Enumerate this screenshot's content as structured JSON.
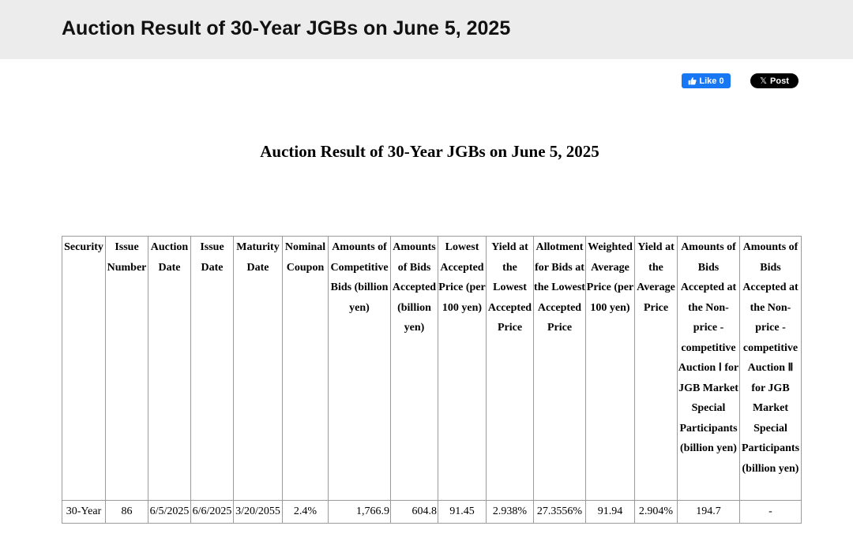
{
  "header": {
    "title": "Auction Result of 30-Year JGBs on June 5, 2025"
  },
  "social": {
    "like_label": "Like 0",
    "post_label": "Post",
    "x_glyph": "𝕏",
    "like_color": "#1877f2",
    "post_color": "#000000"
  },
  "document": {
    "title": "Auction Result of 30-Year JGBs on June 5, 2025"
  },
  "table": {
    "columns": [
      "Security",
      "Issue Number",
      "Auction Date",
      "Issue Date",
      "Maturity Date",
      "Nominal Coupon",
      "Amounts of Competitive Bids (billion yen)",
      "Amounts of Bids Accepted (billion yen)",
      "Lowest Accepted Price (per 100 yen)",
      "Yield at the Lowest Accepted Price",
      "Allotment for Bids at the Lowest Accepted Price",
      "Weighted Average Price (per 100 yen)",
      "Yield at the Average Price",
      "Amounts of Bids Accepted at the Non-price - competitive Auction Ⅰ for JGB Market Special Participants (billion yen)",
      "Amounts of Bids Accepted at the Non-price - competitive Auction Ⅱ for JGB Market Special Participants (billion yen)"
    ],
    "rows": [
      [
        "30-Year",
        "86",
        "6/5/2025",
        "6/6/2025",
        "3/20/2055",
        "2.4%",
        "1,766.9",
        "604.8",
        "91.45",
        "2.938%",
        "27.3556%",
        "91.94",
        "2.904%",
        "194.7",
        "-"
      ]
    ]
  }
}
